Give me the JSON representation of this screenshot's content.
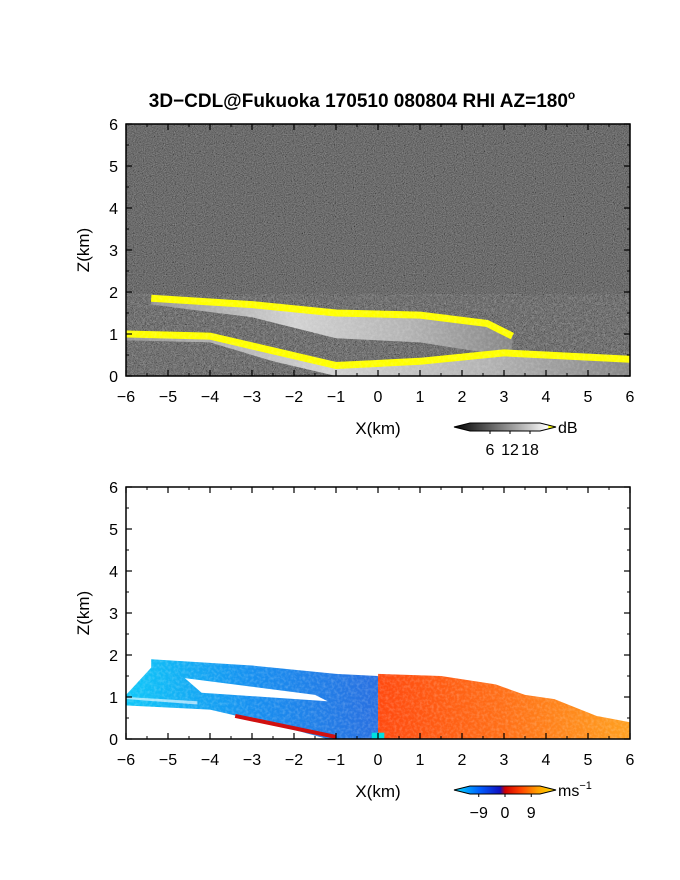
{
  "title_prefix": "3D−CDL@Fukuoka 170510 080804 RHI AZ=180",
  "title_degree": "o",
  "chart_data": [
    {
      "type": "heatmap",
      "panel": "intensity",
      "xlabel": "X(km)",
      "ylabel": "Z(km)",
      "xlim": [
        -6,
        6
      ],
      "ylim": [
        0,
        6
      ],
      "xticks": [
        "−6",
        "−5",
        "−4",
        "−3",
        "−2",
        "−1",
        "0",
        "1",
        "2",
        "3",
        "4",
        "5",
        "6"
      ],
      "yticks": [
        "0",
        "1",
        "2",
        "3",
        "4",
        "5",
        "6"
      ],
      "colorbar": {
        "unit": "dB",
        "ticks": [
          "6",
          "12",
          "18"
        ],
        "tick_values": [
          6,
          12,
          18
        ],
        "range": [
          0,
          21
        ],
        "colors": [
          "#000000",
          "#444444",
          "#888888",
          "#cccccc",
          "#ffffff",
          "#ffff00"
        ]
      },
      "background": "noise",
      "echo_regions": [
        {
          "name": "upper-layer",
          "top": [
            [
              -5.4,
              1.85
            ],
            [
              -3.0,
              1.7
            ],
            [
              -1.0,
              1.5
            ],
            [
              1.0,
              1.45
            ],
            [
              2.6,
              1.25
            ],
            [
              3.2,
              0.95
            ]
          ],
          "bottom": [
            [
              -5.4,
              1.7
            ],
            [
              -3.0,
              1.4
            ],
            [
              -1.0,
              0.9
            ],
            [
              1.0,
              0.8
            ],
            [
              2.6,
              0.55
            ],
            [
              3.2,
              0.5
            ]
          ]
        },
        {
          "name": "low-layer",
          "top": [
            [
              -6,
              1.0
            ],
            [
              -4,
              0.95
            ],
            [
              -2.5,
              0.6
            ],
            [
              -1,
              0.25
            ],
            [
              1,
              0.35
            ],
            [
              3,
              0.55
            ],
            [
              6,
              0.4
            ]
          ],
          "bottom": [
            [
              -6,
              0.85
            ],
            [
              -4,
              0.8
            ],
            [
              -2.5,
              0.35
            ],
            [
              -1,
              0.0
            ],
            [
              6,
              0.0
            ]
          ]
        }
      ]
    },
    {
      "type": "heatmap",
      "panel": "velocity",
      "xlabel": "X(km)",
      "ylabel": "Z(km)",
      "xlim": [
        -6,
        6
      ],
      "ylim": [
        0,
        6
      ],
      "xticks": [
        "−6",
        "−5",
        "−4",
        "−3",
        "−2",
        "−1",
        "0",
        "1",
        "2",
        "3",
        "4",
        "5",
        "6"
      ],
      "yticks": [
        "0",
        "1",
        "2",
        "3",
        "4",
        "5",
        "6"
      ],
      "colorbar": {
        "unit": "ms",
        "unit_exponent": "−1",
        "ticks": [
          "−9",
          "0",
          "9"
        ],
        "tick_values": [
          -9,
          0,
          9
        ],
        "range": [
          -12,
          12
        ],
        "colors": [
          "#00e0ff",
          "#0060ff",
          "#1010c0",
          "#d00000",
          "#ff4000",
          "#ffa000",
          "#ffe000"
        ]
      },
      "velocity_regions": [
        {
          "name": "approaching-side",
          "x_range": [
            -5.4,
            0
          ],
          "value": -7
        },
        {
          "name": "receding-side",
          "x_range": [
            0,
            6
          ],
          "value": 7
        }
      ]
    }
  ]
}
